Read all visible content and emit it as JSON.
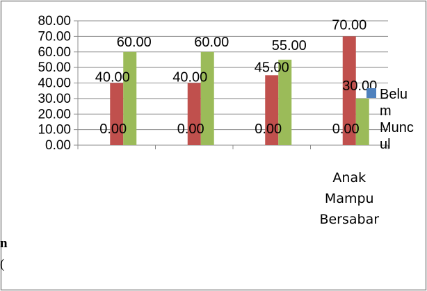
{
  "chart_data": {
    "type": "bar",
    "categories": [
      "",
      "",
      "",
      "Anak Mampu Bersabar"
    ],
    "category_label_lines": [
      [],
      [],
      [],
      [
        "Anak",
        "Mampu",
        "Bersabar"
      ]
    ],
    "series": [
      {
        "name": "Belum Muncul",
        "values": [
          0,
          0,
          0,
          0
        ],
        "color": "#4F81BD",
        "labels": [
          "0.00",
          "0.00",
          "0.00",
          "0.00"
        ]
      },
      {
        "name": "",
        "values": [
          40,
          40,
          45,
          70
        ],
        "color": "#C0504D",
        "labels": [
          "40.00",
          "40.00",
          "45.00",
          "70.00"
        ]
      },
      {
        "name": "",
        "values": [
          60,
          60,
          55,
          30
        ],
        "color": "#9BBB59",
        "labels": [
          "60.00",
          "60.00",
          "55.00",
          "30.00"
        ]
      }
    ],
    "y_ticks": [
      "0.00",
      "10.00",
      "20.00",
      "30.00",
      "40.00",
      "50.00",
      "60.00",
      "70.00",
      "80.00"
    ],
    "ylim": [
      0,
      80
    ],
    "grid": true,
    "legend": {
      "position": "right",
      "lines": [
        "Belu",
        "m",
        "Munc",
        "ul"
      ]
    },
    "title": "",
    "xlabel": "",
    "ylabel": ""
  },
  "doc_fragment": {
    "line1": "n",
    "line2": "("
  }
}
